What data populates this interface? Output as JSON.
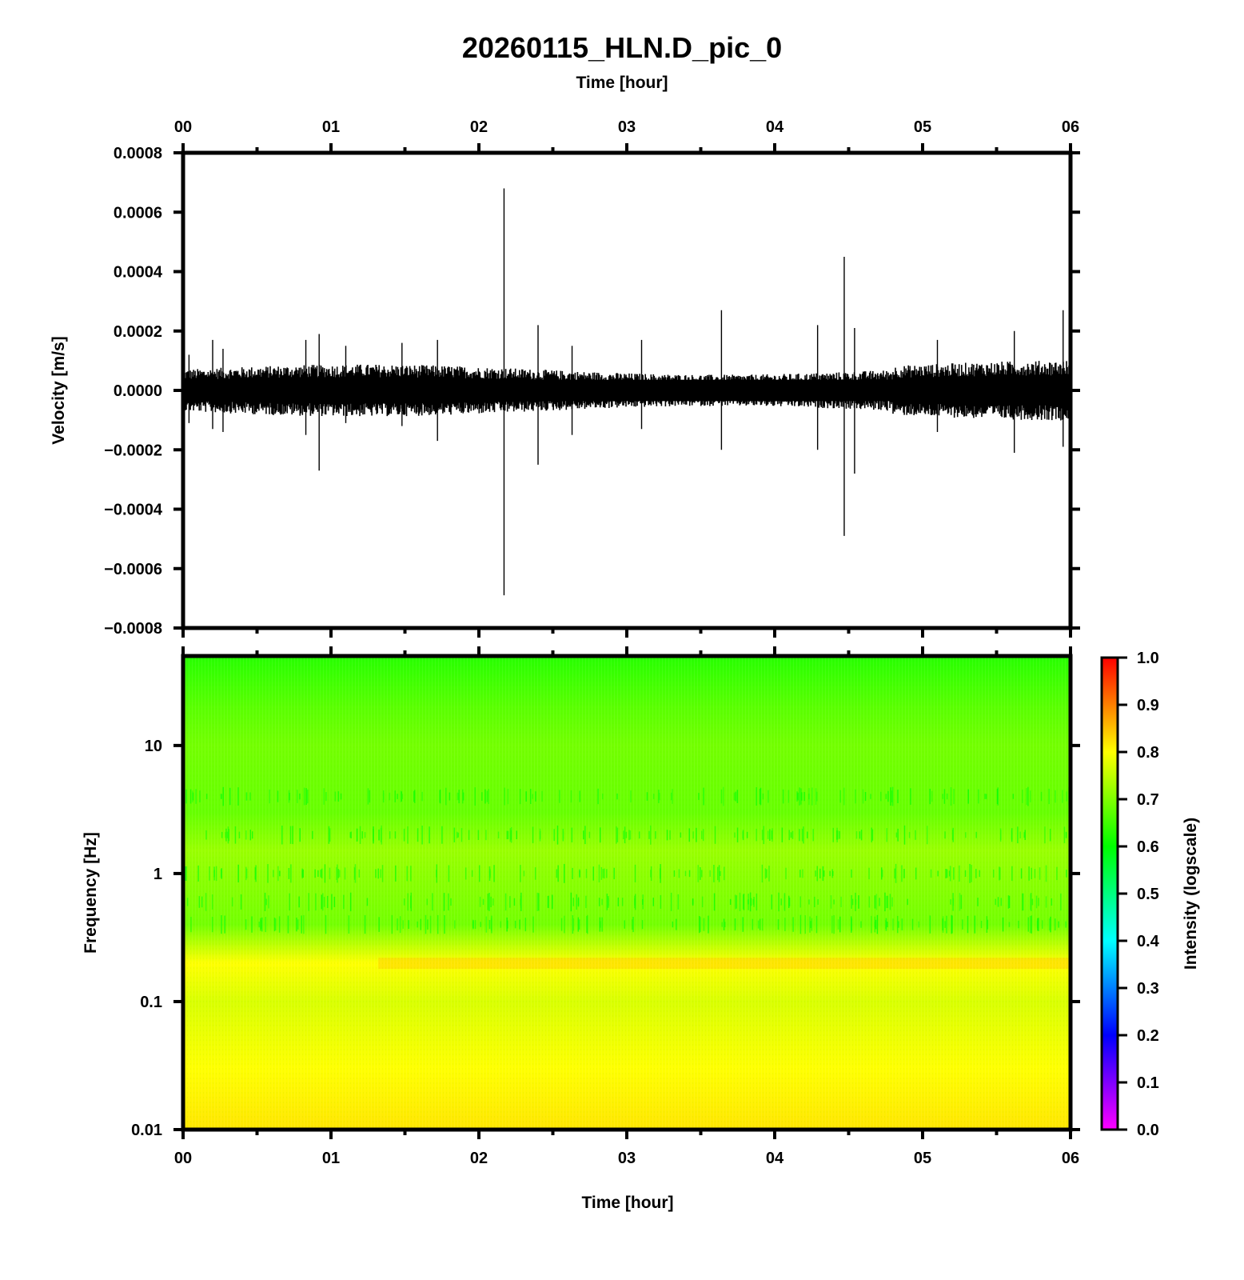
{
  "title": "20260115_HLN.D_pic_0",
  "chart_data": [
    {
      "type": "line",
      "panel": "seismogram",
      "title": "20260115_HLN.D_pic_0",
      "xlabel": "Time [hour]",
      "ylabel": "Velocity [m/s]",
      "x_ticks": [
        "00",
        "01",
        "02",
        "03",
        "04",
        "05",
        "06"
      ],
      "y_ticks": [
        "0.0008",
        "0.0006",
        "0.0004",
        "0.0002",
        "0.0000",
        "−0.0002",
        "−0.0004",
        "−0.0006",
        "−0.0008"
      ],
      "xlim": [
        0,
        6
      ],
      "ylim": [
        -0.0008,
        0.0008
      ],
      "background_noise_amplitude": 8e-05,
      "trace_color": "#000000",
      "spikes": [
        {
          "x": 0.04,
          "up": 0.00012,
          "down": -0.00011
        },
        {
          "x": 0.2,
          "up": 0.00017,
          "down": -0.00013
        },
        {
          "x": 0.27,
          "up": 0.00014,
          "down": -0.00014
        },
        {
          "x": 0.83,
          "up": 0.00017,
          "down": -0.00015
        },
        {
          "x": 0.92,
          "up": 0.00019,
          "down": -0.00027
        },
        {
          "x": 1.1,
          "up": 0.00015,
          "down": -0.00011
        },
        {
          "x": 1.48,
          "up": 0.00016,
          "down": -0.00012
        },
        {
          "x": 1.72,
          "up": 0.00017,
          "down": -0.00017
        },
        {
          "x": 2.17,
          "up": 0.00068,
          "down": -0.00069
        },
        {
          "x": 2.4,
          "up": 0.00022,
          "down": -0.00025
        },
        {
          "x": 2.63,
          "up": 0.00015,
          "down": -0.00015
        },
        {
          "x": 3.1,
          "up": 0.00017,
          "down": -0.00013
        },
        {
          "x": 3.64,
          "up": 0.00027,
          "down": -0.0002
        },
        {
          "x": 4.29,
          "up": 0.00022,
          "down": -0.0002
        },
        {
          "x": 4.47,
          "up": 0.00045,
          "down": -0.00049
        },
        {
          "x": 4.54,
          "up": 0.00021,
          "down": -0.00028
        },
        {
          "x": 5.1,
          "up": 0.00017,
          "down": -0.00014
        },
        {
          "x": 5.62,
          "up": 0.0002,
          "down": -0.00021
        },
        {
          "x": 5.95,
          "up": 0.00027,
          "down": -0.00019
        }
      ]
    },
    {
      "type": "heatmap",
      "panel": "spectrogram",
      "xlabel": "Time [hour]",
      "ylabel": "Frequency [Hz]",
      "x_ticks": [
        "00",
        "01",
        "02",
        "03",
        "04",
        "05",
        "06"
      ],
      "y_ticks": [
        "10",
        "1",
        "0.1",
        "0.01"
      ],
      "y_scale": "log",
      "xlim": [
        0,
        6
      ],
      "ylim": [
        0.01,
        50
      ],
      "colorbar": {
        "label": "Intensity (logscale)",
        "ticks": [
          "1.0",
          "0.9",
          "0.8",
          "0.7",
          "0.6",
          "0.5",
          "0.4",
          "0.3",
          "0.2",
          "0.1",
          "0.0"
        ],
        "range": [
          0,
          1
        ],
        "colors": [
          "#ff00ff",
          "#0000ff",
          "#00ffff",
          "#00ff00",
          "#ffff00",
          "#ff0000"
        ]
      },
      "intensity_profile": [
        {
          "freq": 50,
          "intensity": 0.63
        },
        {
          "freq": 20,
          "intensity": 0.67
        },
        {
          "freq": 10,
          "intensity": 0.69
        },
        {
          "freq": 3,
          "intensity": 0.68
        },
        {
          "freq": 1.5,
          "intensity": 0.72
        },
        {
          "freq": 1,
          "intensity": 0.71
        },
        {
          "freq": 0.4,
          "intensity": 0.69
        },
        {
          "freq": 0.2,
          "intensity": 0.8
        },
        {
          "freq": 0.1,
          "intensity": 0.77
        },
        {
          "freq": 0.03,
          "intensity": 0.8
        },
        {
          "freq": 0.01,
          "intensity": 0.82
        }
      ]
    }
  ]
}
